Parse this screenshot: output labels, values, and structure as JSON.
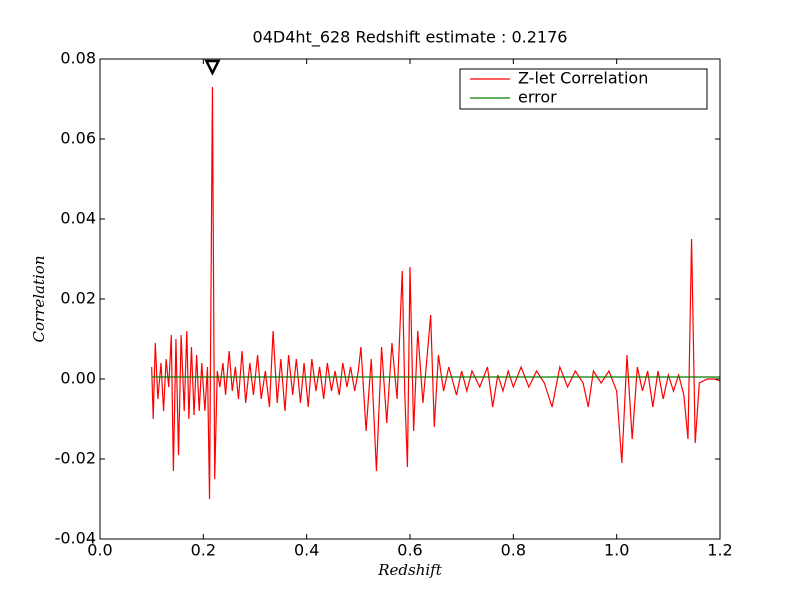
{
  "chart_data": {
    "type": "line",
    "title": "04D4ht_628 Redshift estimate : 0.2176",
    "xlabel": "Redshift",
    "ylabel": "Correlation",
    "xlim": [
      0,
      1.2
    ],
    "ylim": [
      -0.04,
      0.08
    ],
    "xticks": [
      {
        "value": 0,
        "label": "0.0"
      },
      0.2,
      0.4,
      0.6,
      0.8,
      {
        "value": 1,
        "label": "1.0"
      },
      1.2
    ],
    "yticks": [
      -0.04,
      -0.02,
      {
        "value": 0,
        "label": "0.00"
      },
      0.02,
      0.04,
      0.06,
      0.08
    ],
    "legend": "upper right",
    "marker": {
      "x": 0.2176,
      "y": 0.078
    },
    "series": [
      {
        "name": "Z-let Correlation",
        "color": "#ff0000",
        "x": [
          0.1,
          0.103,
          0.107,
          0.112,
          0.118,
          0.123,
          0.128,
          0.133,
          0.138,
          0.142,
          0.147,
          0.152,
          0.157,
          0.163,
          0.168,
          0.172,
          0.177,
          0.182,
          0.187,
          0.192,
          0.197,
          0.203,
          0.208,
          0.212,
          0.2176,
          0.222,
          0.227,
          0.232,
          0.238,
          0.243,
          0.25,
          0.256,
          0.262,
          0.268,
          0.275,
          0.282,
          0.29,
          0.297,
          0.305,
          0.312,
          0.32,
          0.328,
          0.335,
          0.343,
          0.35,
          0.358,
          0.365,
          0.373,
          0.38,
          0.388,
          0.395,
          0.403,
          0.41,
          0.418,
          0.425,
          0.433,
          0.44,
          0.448,
          0.455,
          0.463,
          0.47,
          0.478,
          0.485,
          0.493,
          0.5,
          0.505,
          0.515,
          0.525,
          0.535,
          0.545,
          0.555,
          0.565,
          0.575,
          0.585,
          0.59,
          0.595,
          0.6,
          0.607,
          0.615,
          0.625,
          0.632,
          0.64,
          0.647,
          0.655,
          0.665,
          0.675,
          0.69,
          0.7,
          0.71,
          0.72,
          0.735,
          0.75,
          0.76,
          0.77,
          0.78,
          0.79,
          0.8,
          0.815,
          0.83,
          0.845,
          0.86,
          0.875,
          0.89,
          0.905,
          0.92,
          0.935,
          0.945,
          0.955,
          0.97,
          0.985,
          1.0,
          1.01,
          1.02,
          1.03,
          1.04,
          1.05,
          1.06,
          1.07,
          1.08,
          1.09,
          1.1,
          1.11,
          1.12,
          1.13,
          1.138,
          1.145,
          1.152,
          1.16,
          1.175,
          1.19,
          1.2
        ],
        "values": [
          0.003,
          -0.01,
          0.009,
          -0.005,
          0.004,
          -0.008,
          0.005,
          -0.002,
          0.011,
          -0.023,
          0.01,
          -0.019,
          0.011,
          -0.008,
          0.012,
          -0.01,
          0.008,
          -0.009,
          0.006,
          -0.008,
          0.004,
          -0.008,
          0.003,
          -0.03,
          0.073,
          -0.025,
          0.002,
          -0.002,
          0.004,
          -0.004,
          0.007,
          -0.003,
          0.003,
          -0.005,
          0.007,
          -0.006,
          0.004,
          -0.004,
          0.006,
          -0.005,
          0.002,
          -0.007,
          0.012,
          -0.006,
          0.005,
          -0.008,
          0.006,
          -0.004,
          0.005,
          -0.006,
          0.004,
          -0.007,
          0.005,
          -0.003,
          0.003,
          -0.005,
          0.004,
          -0.003,
          0.002,
          -0.004,
          0.004,
          -0.002,
          0.003,
          -0.003,
          0.002,
          0.008,
          -0.013,
          0.005,
          -0.023,
          0.008,
          -0.011,
          0.009,
          -0.005,
          0.027,
          -0.004,
          -0.022,
          0.028,
          -0.013,
          0.012,
          -0.006,
          0.004,
          0.016,
          -0.012,
          0.006,
          -0.003,
          0.003,
          -0.004,
          0.002,
          -0.003,
          0.002,
          -0.002,
          0.003,
          -0.007,
          0.001,
          -0.003,
          0.002,
          -0.002,
          0.003,
          -0.002,
          0.002,
          -0.001,
          -0.007,
          0.003,
          -0.002,
          0.002,
          -0.001,
          -0.007,
          0.002,
          -0.001,
          0.002,
          -0.003,
          -0.021,
          0.006,
          -0.015,
          0.003,
          -0.003,
          0.002,
          -0.007,
          0.002,
          -0.005,
          0.001,
          -0.003,
          0.001,
          -0.004,
          -0.015,
          0.035,
          -0.016,
          -0.001,
          0,
          0,
          -0.0005
        ]
      },
      {
        "name": "error",
        "color": "#008000",
        "x": [
          0.1,
          1.2
        ],
        "values": [
          0.0005,
          0.0005
        ]
      }
    ]
  }
}
